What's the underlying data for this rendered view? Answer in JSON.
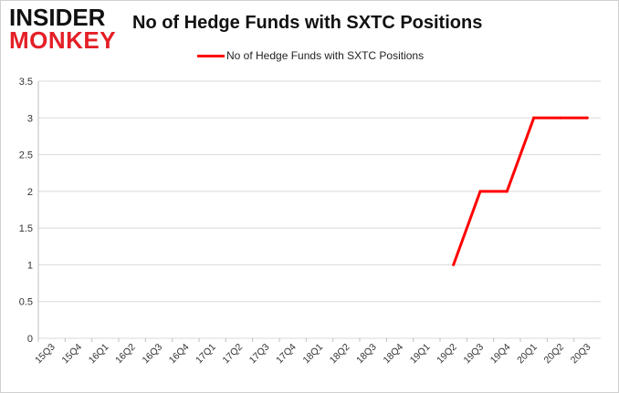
{
  "logo": {
    "line1": "INSIDER",
    "line2": "MONKEY"
  },
  "colors": {
    "series": "#ff0000",
    "grid": "#d9d9d9",
    "axis_text": "#333333",
    "logo_red": "#e41f26"
  },
  "chart_data": {
    "type": "line",
    "title": "No of Hedge Funds with SXTC Positions",
    "xlabel": "",
    "ylabel": "",
    "legend_position": "top",
    "grid": "horizontal",
    "ylim": [
      0,
      3.5
    ],
    "yticks": [
      "0",
      "0.5",
      "1",
      "1.5",
      "2",
      "2.5",
      "3",
      "3.5"
    ],
    "categories": [
      "15Q3",
      "15Q4",
      "16Q1",
      "16Q2",
      "16Q3",
      "16Q4",
      "17Q1",
      "17Q2",
      "17Q3",
      "17Q4",
      "18Q1",
      "18Q2",
      "18Q3",
      "18Q4",
      "19Q1",
      "19Q2",
      "19Q3",
      "19Q4",
      "20Q1",
      "20Q2",
      "20Q3"
    ],
    "series": [
      {
        "name": "No of Hedge Funds with SXTC Positions",
        "color": "#ff0000",
        "values": [
          null,
          null,
          null,
          null,
          null,
          null,
          null,
          null,
          null,
          null,
          null,
          null,
          null,
          null,
          null,
          1,
          2,
          2,
          3,
          3,
          3
        ]
      }
    ]
  }
}
